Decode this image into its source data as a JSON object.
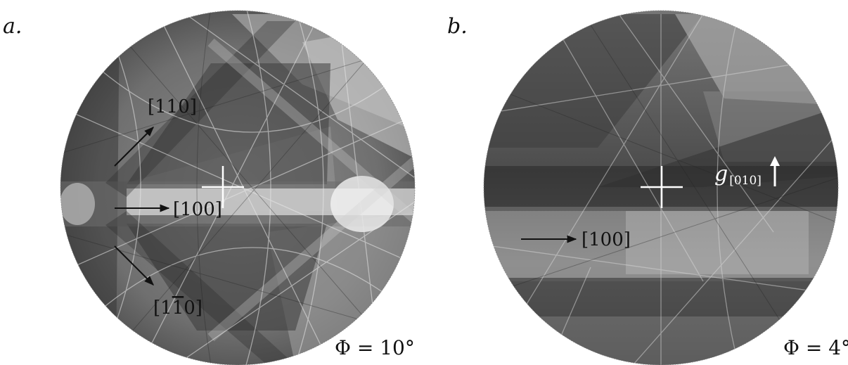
{
  "panel_a": {
    "label": "a.",
    "phi_text": "Φ = 10°",
    "directions": {
      "upper": "[110]",
      "middle": "[100]",
      "lower_prefix": "[1",
      "lower_bar": "1",
      "lower_suffix": "0]"
    }
  },
  "panel_b": {
    "label": "b.",
    "phi_text": "Φ = 4°",
    "directions": {
      "middle": "[100]"
    },
    "g_symbol": "g",
    "g_subscript": "[010]"
  },
  "colors": {
    "background": "#ffffff",
    "annotation": "#111111",
    "center_cross": "#ffffff"
  }
}
